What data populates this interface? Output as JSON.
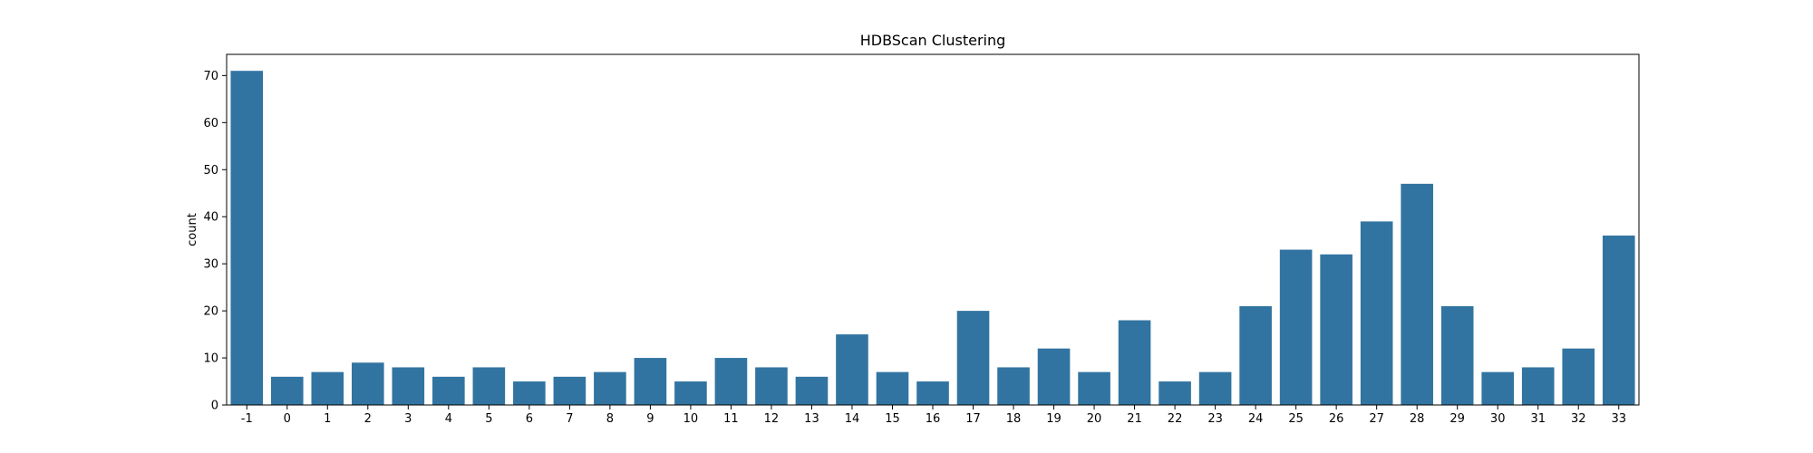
{
  "chart_data": {
    "type": "bar",
    "title": "HDBScan Clustering",
    "xlabel": "",
    "ylabel": "count",
    "categories": [
      "-1",
      "0",
      "1",
      "2",
      "3",
      "4",
      "5",
      "6",
      "7",
      "8",
      "9",
      "10",
      "11",
      "12",
      "13",
      "14",
      "15",
      "16",
      "17",
      "18",
      "19",
      "20",
      "21",
      "22",
      "23",
      "24",
      "25",
      "26",
      "27",
      "28",
      "29",
      "30",
      "31",
      "32",
      "33"
    ],
    "values": [
      71,
      6,
      7,
      9,
      8,
      6,
      8,
      5,
      6,
      7,
      10,
      5,
      10,
      8,
      6,
      15,
      7,
      5,
      20,
      8,
      12,
      7,
      18,
      5,
      7,
      21,
      33,
      32,
      39,
      47,
      21,
      7,
      8,
      12,
      36
    ],
    "ylim": [
      0,
      74.5
    ],
    "yticks": [
      0,
      10,
      20,
      30,
      40,
      50,
      60,
      70
    ],
    "bar_color": "#3274a1",
    "grid": false,
    "legend": "none"
  }
}
